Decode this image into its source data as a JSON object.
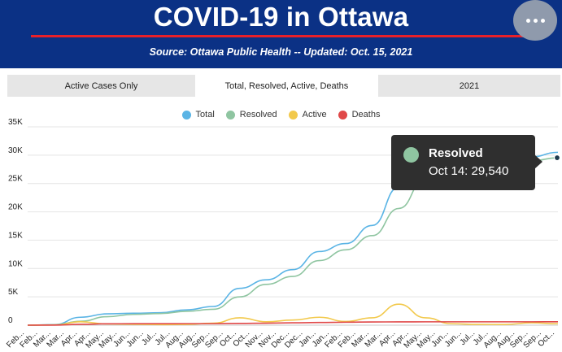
{
  "header": {
    "title": "COVID-19 in Ottawa",
    "subtitle": "Source:  Ottawa Public Health -- Updated:  Oct. 15, 2021"
  },
  "tabs": [
    {
      "label": "Active Cases Only",
      "selected": false
    },
    {
      "label": "Total, Resolved, Active, Deaths",
      "selected": true
    },
    {
      "label": "2021",
      "selected": false
    }
  ],
  "colors": {
    "header_bg": "#0b3185",
    "accent_red": "#e8202a",
    "total": "#5ab4e5",
    "resolved": "#8fc5a1",
    "active": "#f2c94c",
    "deaths": "#e04848"
  },
  "tooltip": {
    "series": "Resolved",
    "text": "Oct 14: 29,540"
  },
  "chart_data": {
    "type": "line",
    "title": "",
    "xlabel": "",
    "ylabel": "",
    "ylim": [
      0,
      35000
    ],
    "yticks": [
      "0",
      "5K",
      "10K",
      "15K",
      "20K",
      "25K",
      "30K",
      "35K"
    ],
    "x_tick_labels": [
      "Feb...",
      "Feb...",
      "Mar...",
      "Mar...",
      "Apr...",
      "Apr...",
      "May...",
      "May...",
      "Jun...",
      "Jun...",
      "Jul...",
      "Jul...",
      "Aug...",
      "Aug...",
      "Sep...",
      "Sep...",
      "Oct...",
      "Oct...",
      "Nov...",
      "Nov...",
      "Dec...",
      "Dec...",
      "Jan...",
      "Jan...",
      "Feb...",
      "Feb...",
      "Mar...",
      "Mar...",
      "Apr...",
      "Apr...",
      "May...",
      "May...",
      "Jun...",
      "Jun...",
      "Jul...",
      "Jul...",
      "Aug...",
      "Aug...",
      "Sep...",
      "Sep...",
      "Oct..."
    ],
    "x": [
      "2020-02",
      "2020-03",
      "2020-04",
      "2020-05",
      "2020-06",
      "2020-07",
      "2020-08",
      "2020-09",
      "2020-10",
      "2020-11",
      "2020-12",
      "2021-01",
      "2021-02",
      "2021-03",
      "2021-04",
      "2021-05",
      "2021-06",
      "2021-07",
      "2021-08",
      "2021-09",
      "2021-10"
    ],
    "legend_position": "top",
    "grid": true,
    "series": [
      {
        "name": "Total",
        "color": "#5ab4e5",
        "values": [
          0,
          100,
          1400,
          2000,
          2100,
          2200,
          2700,
          3300,
          6500,
          8000,
          9800,
          13000,
          14400,
          17600,
          24400,
          27600,
          28100,
          28300,
          28600,
          29700,
          30500
        ]
      },
      {
        "name": "Resolved",
        "color": "#8fc5a1",
        "values": [
          0,
          50,
          700,
          1500,
          1900,
          2050,
          2450,
          2800,
          5000,
          7200,
          8600,
          11400,
          13300,
          15800,
          20600,
          25900,
          27500,
          27900,
          28200,
          29000,
          29540
        ]
      },
      {
        "name": "Active",
        "color": "#f2c94c",
        "values": [
          0,
          40,
          600,
          220,
          150,
          100,
          140,
          350,
          1300,
          600,
          900,
          1400,
          650,
          1300,
          3700,
          1300,
          250,
          130,
          120,
          420,
          250
        ]
      },
      {
        "name": "Deaths",
        "color": "#e04848",
        "values": [
          0,
          10,
          150,
          240,
          260,
          265,
          268,
          270,
          310,
          350,
          420,
          470,
          520,
          570,
          580,
          590,
          590,
          592,
          593,
          593,
          594
        ]
      }
    ]
  }
}
